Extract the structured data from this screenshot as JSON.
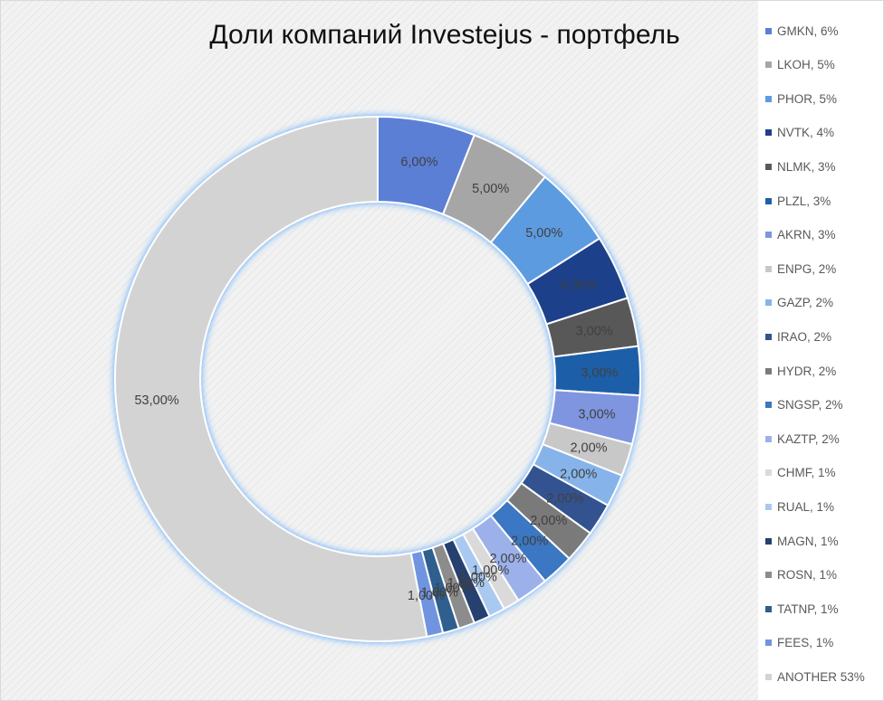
{
  "chart_data": {
    "type": "pie",
    "variant": "doughnut",
    "title": "Доли компаний Investejus - портфель",
    "legend_position": "right",
    "categories": [
      "GMKN",
      "LKOH",
      "PHOR",
      "NVTK",
      "NLMK",
      "PLZL",
      "AKRN",
      "ENPG",
      "GAZP",
      "IRAO",
      "HYDR",
      "SNGSP",
      "KAZTP",
      "CHMF",
      "RUAL",
      "MAGN",
      "ROSN",
      "TATNP",
      "FEES",
      "ANOTHER"
    ],
    "values": [
      6,
      5,
      5,
      4,
      3,
      3,
      3,
      2,
      2,
      2,
      2,
      2,
      2,
      1,
      1,
      1,
      1,
      1,
      1,
      53
    ],
    "data_labels": [
      "6,00%",
      "5,00%",
      "5,00%",
      "4,00%",
      "3,00%",
      "3,00%",
      "3,00%",
      "2,00%",
      "2,00%",
      "2,00%",
      "2,00%",
      "2,00%",
      "2,00%",
      "1,00%",
      "1,00%",
      "1,00%",
      "1,00%",
      "1,00%",
      "1,00%",
      "53,00%"
    ],
    "legend_entries": [
      "GMKN, 6%",
      "LKOH, 5%",
      "PHOR, 5%",
      "NVTK, 4%",
      "NLMK, 3%",
      "PLZL, 3%",
      "AKRN, 3%",
      "ENPG, 2%",
      "GAZP, 2%",
      "IRAO, 2%",
      "HYDR, 2%",
      "SNGSP, 2%",
      "KAZTP, 2%",
      "CHMF, 1%",
      "RUAL, 1%",
      "MAGN, 1%",
      "ROSN, 1%",
      "TATNP, 1%",
      "FEES, 1%",
      "ANOTHER 53%"
    ],
    "colors": [
      "#5b7fd6",
      "#a6a6a6",
      "#5d9be0",
      "#1f3f8a",
      "#595959",
      "#1f5fa8",
      "#7f95df",
      "#c8c8c8",
      "#86b4ea",
      "#33528f",
      "#7a7a7a",
      "#3a77c2",
      "#9cb1ea",
      "#dadada",
      "#a9c9f0",
      "#25406f",
      "#8c8c8c",
      "#2d5f8e",
      "#6f94e0",
      "#d3d3d3"
    ]
  }
}
